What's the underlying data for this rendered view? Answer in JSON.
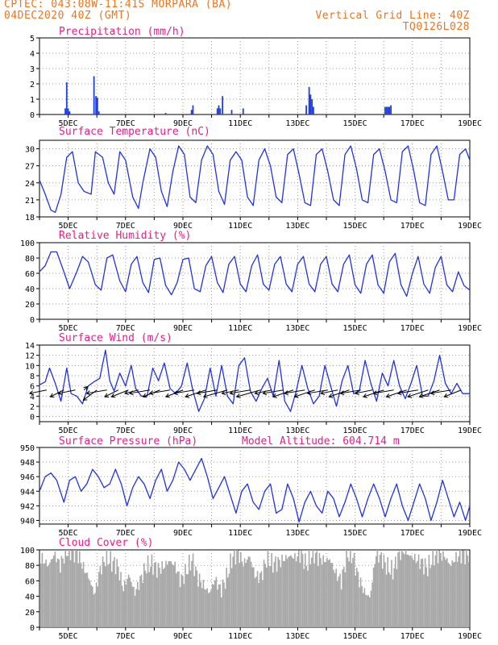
{
  "header": {
    "left_line1": "CPTEC:  043:08W-11:41S  MORPARA (BA)",
    "left_line2": "04DEC2020 40Z (GMT)",
    "right_line1": "Vertical Grid Line: 40Z",
    "right_line2": "TQ0126L028"
  },
  "x_axis": {
    "day_start": 4,
    "day_end": 19,
    "tick_labels": [
      "5DEC",
      "7DEC",
      "9DEC",
      "11DEC",
      "13DEC",
      "15DEC",
      "17DEC",
      "19DEC"
    ],
    "tick_days": [
      5,
      7,
      9,
      11,
      13,
      15,
      17,
      19
    ]
  },
  "chart_data": [
    {
      "type": "bar",
      "title": "Precipitation (mm/h)",
      "ylim": [
        0,
        5
      ],
      "yticks": [
        0,
        1,
        2,
        3,
        4,
        5
      ],
      "color": "#1f3fe0",
      "x": [
        4.9,
        4.95,
        5.0,
        5.05,
        5.9,
        5.97,
        6.02,
        6.07,
        8.4,
        9.3,
        9.35,
        10.2,
        10.25,
        10.3,
        10.38,
        10.7,
        11.1,
        13.3,
        13.4,
        13.45,
        13.5,
        13.55,
        16.05,
        16.1,
        16.15,
        16.2,
        16.25
      ],
      "values": [
        0.4,
        2.1,
        0.4,
        0.2,
        2.5,
        1.2,
        1.1,
        0.2,
        0.1,
        0.3,
        0.6,
        0.4,
        0.6,
        0.4,
        1.2,
        0.3,
        0.4,
        0.6,
        1.8,
        1.3,
        1.0,
        0.5,
        0.5,
        0.5,
        0.5,
        0.5,
        0.6
      ]
    },
    {
      "type": "line",
      "title": "Surface Temperature (nC)",
      "ylim": [
        18,
        31.5
      ],
      "yticks": [
        18,
        21,
        24,
        27,
        30
      ],
      "color": "#2233dd",
      "x": [
        4.0,
        4.2,
        4.4,
        4.55,
        4.75,
        4.95,
        5.15,
        5.35,
        5.55,
        5.8,
        5.95,
        6.2,
        6.4,
        6.6,
        6.8,
        7.0,
        7.25,
        7.45,
        7.6,
        7.85,
        8.05,
        8.25,
        8.45,
        8.65,
        8.85,
        9.05,
        9.25,
        9.45,
        9.65,
        9.85,
        10.05,
        10.25,
        10.45,
        10.65,
        10.85,
        11.05,
        11.25,
        11.45,
        11.65,
        11.85,
        12.05,
        12.25,
        12.45,
        12.65,
        12.85,
        13.05,
        13.25,
        13.45,
        13.65,
        13.85,
        14.05,
        14.25,
        14.45,
        14.65,
        14.85,
        15.05,
        15.25,
        15.45,
        15.65,
        15.85,
        16.05,
        16.25,
        16.45,
        16.65,
        16.85,
        17.05,
        17.25,
        17.45,
        17.65,
        17.85,
        18.05,
        18.25,
        18.45,
        18.65,
        18.85,
        19.0
      ],
      "values": [
        24.5,
        22.0,
        19.2,
        18.8,
        22.0,
        28.5,
        29.5,
        24.0,
        22.5,
        22.0,
        29.5,
        28.5,
        24.0,
        22.0,
        29.5,
        28.0,
        21.5,
        19.5,
        24.0,
        30.0,
        28.5,
        22.5,
        19.8,
        26.0,
        30.5,
        29.0,
        21.5,
        20.5,
        28.0,
        30.5,
        29.0,
        22.5,
        20.2,
        28.0,
        29.5,
        28.0,
        21.5,
        20.0,
        28.0,
        30.0,
        27.0,
        21.5,
        20.5,
        29.0,
        30.0,
        25.5,
        20.5,
        20.0,
        29.0,
        30.0,
        26.0,
        21.0,
        20.0,
        29.0,
        30.5,
        26.5,
        21.0,
        20.5,
        29.0,
        30.0,
        26.0,
        21.0,
        20.5,
        29.5,
        30.5,
        26.0,
        20.5,
        20.0,
        29.0,
        30.5,
        26.0,
        21.0,
        21.0,
        29.0,
        30.0,
        28.0
      ]
    },
    {
      "type": "line",
      "title": "Relative Humidity (%)",
      "ylim": [
        0,
        100
      ],
      "yticks": [
        0,
        20,
        40,
        60,
        80,
        100
      ],
      "color": "#2233dd",
      "x": [
        4.0,
        4.2,
        4.4,
        4.6,
        4.85,
        5.05,
        5.3,
        5.5,
        5.7,
        5.95,
        6.15,
        6.35,
        6.55,
        6.8,
        7.0,
        7.2,
        7.4,
        7.6,
        7.8,
        8.0,
        8.2,
        8.4,
        8.6,
        8.8,
        9.0,
        9.2,
        9.4,
        9.6,
        9.8,
        10.0,
        10.2,
        10.4,
        10.6,
        10.8,
        11.0,
        11.2,
        11.4,
        11.6,
        11.8,
        12.0,
        12.2,
        12.4,
        12.6,
        12.8,
        13.0,
        13.2,
        13.4,
        13.6,
        13.8,
        14.0,
        14.2,
        14.4,
        14.6,
        14.8,
        15.0,
        15.2,
        15.4,
        15.6,
        15.8,
        16.0,
        16.2,
        16.4,
        16.6,
        16.8,
        17.0,
        17.2,
        17.4,
        17.6,
        17.8,
        18.0,
        18.2,
        18.4,
        18.6,
        18.8,
        19.0
      ],
      "values": [
        62,
        70,
        88,
        88,
        62,
        40,
        62,
        82,
        75,
        45,
        38,
        80,
        84,
        50,
        36,
        72,
        82,
        48,
        35,
        78,
        80,
        44,
        32,
        48,
        78,
        80,
        40,
        36,
        70,
        82,
        48,
        35,
        72,
        82,
        46,
        36,
        70,
        84,
        46,
        38,
        72,
        82,
        46,
        36,
        72,
        82,
        46,
        36,
        72,
        82,
        46,
        36,
        72,
        84,
        45,
        34,
        72,
        84,
        45,
        34,
        75,
        86,
        45,
        30,
        60,
        82,
        46,
        34,
        68,
        82,
        45,
        36,
        62,
        44,
        38
      ]
    },
    {
      "type": "line",
      "title": "Surface Wind (m/s)",
      "ylim": [
        -1,
        14
      ],
      "yticks": [
        0,
        2,
        4,
        6,
        8,
        10,
        12,
        14
      ],
      "color": "#2233dd",
      "x": [
        4.0,
        4.2,
        4.35,
        4.55,
        4.75,
        4.95,
        5.1,
        5.3,
        5.5,
        5.7,
        5.9,
        6.1,
        6.3,
        6.45,
        6.6,
        6.8,
        7.0,
        7.2,
        7.35,
        7.55,
        7.75,
        7.95,
        8.15,
        8.35,
        8.55,
        8.75,
        8.95,
        9.15,
        9.35,
        9.55,
        9.75,
        9.95,
        10.15,
        10.35,
        10.55,
        10.75,
        10.95,
        11.15,
        11.35,
        11.55,
        11.75,
        11.95,
        12.15,
        12.35,
        12.55,
        12.75,
        12.95,
        13.15,
        13.35,
        13.55,
        13.75,
        13.95,
        14.15,
        14.35,
        14.55,
        14.75,
        14.95,
        15.15,
        15.35,
        15.55,
        15.75,
        15.95,
        16.15,
        16.35,
        16.55,
        16.75,
        16.95,
        17.15,
        17.35,
        17.55,
        17.75,
        17.95,
        18.15,
        18.35,
        18.55,
        18.75,
        19.0
      ],
      "values": [
        6.2,
        6.8,
        9.5,
        6.5,
        3.0,
        9.5,
        4.5,
        4.0,
        2.5,
        6.0,
        6.8,
        7.5,
        13.0,
        7.0,
        5.0,
        8.5,
        6.0,
        10.0,
        5.5,
        4.0,
        4.0,
        9.5,
        7.0,
        10.5,
        5.5,
        4.5,
        6.0,
        10.5,
        5.0,
        1.0,
        3.5,
        9.5,
        4.0,
        10.0,
        4.0,
        2.5,
        10.0,
        11.5,
        5.0,
        3.0,
        5.5,
        7.5,
        4.0,
        11.0,
        3.0,
        1.0,
        5.0,
        10.0,
        5.5,
        2.5,
        4.0,
        10.0,
        6.0,
        2.0,
        7.0,
        10.0,
        4.5,
        5.0,
        11.0,
        6.5,
        3.0,
        8.5,
        6.0,
        11.0,
        6.0,
        3.5,
        6.5,
        10.0,
        4.0,
        4.0,
        7.0,
        12.0,
        6.5,
        4.5,
        6.5,
        4.5,
        4.5
      ]
    },
    {
      "type": "line",
      "title": "Surface Pressure (hPa)",
      "ylim": [
        939.5,
        950
      ],
      "yticks": [
        940,
        942,
        944,
        946,
        948,
        950
      ],
      "color": "#2233dd",
      "x": [
        4.0,
        4.2,
        4.4,
        4.6,
        4.85,
        5.05,
        5.25,
        5.45,
        5.65,
        5.85,
        6.05,
        6.25,
        6.45,
        6.65,
        6.85,
        7.05,
        7.25,
        7.45,
        7.65,
        7.85,
        8.05,
        8.25,
        8.45,
        8.65,
        8.85,
        9.05,
        9.25,
        9.45,
        9.65,
        9.85,
        10.05,
        10.25,
        10.45,
        10.65,
        10.85,
        11.05,
        11.25,
        11.45,
        11.65,
        11.85,
        12.05,
        12.25,
        12.45,
        12.65,
        12.85,
        13.05,
        13.25,
        13.45,
        13.65,
        13.85,
        14.05,
        14.25,
        14.45,
        14.65,
        14.85,
        15.05,
        15.25,
        15.45,
        15.65,
        15.85,
        16.05,
        16.25,
        16.45,
        16.65,
        16.85,
        17.05,
        17.25,
        17.45,
        17.65,
        17.85,
        18.05,
        18.25,
        18.45,
        18.65,
        18.85,
        19.0
      ],
      "values": [
        944.0,
        946.0,
        946.5,
        945.5,
        942.5,
        945.5,
        946.0,
        944.0,
        945.0,
        947.0,
        946.0,
        944.5,
        945.0,
        947.0,
        945.0,
        942.0,
        944.5,
        946.0,
        945.0,
        943.0,
        945.5,
        947.0,
        944.0,
        945.5,
        948.0,
        947.0,
        945.5,
        947.0,
        948.5,
        946.0,
        943.0,
        944.5,
        946.0,
        943.5,
        941.0,
        944.0,
        945.0,
        942.5,
        941.5,
        944.0,
        945.0,
        941.0,
        941.5,
        945.0,
        943.0,
        939.8,
        942.5,
        944.0,
        942.0,
        941.0,
        944.0,
        943.0,
        940.5,
        942.5,
        945.0,
        943.0,
        940.5,
        943.0,
        945.0,
        943.0,
        940.5,
        943.0,
        945.0,
        942.0,
        940.0,
        942.5,
        945.0,
        943.0,
        940.0,
        942.5,
        945.5,
        943.0,
        940.5,
        942.5,
        940.0,
        942.0
      ]
    },
    {
      "type": "area",
      "title": "Cloud Cover (%)",
      "ylim": [
        0,
        100
      ],
      "yticks": [
        0,
        20,
        40,
        60,
        80,
        100
      ],
      "color": "#a8a8a8",
      "x": [
        4.0,
        4.3,
        4.5,
        4.7,
        4.9,
        5.1,
        5.3,
        5.5,
        5.7,
        5.9,
        6.1,
        6.3,
        6.5,
        6.7,
        6.9,
        7.1,
        7.3,
        7.5,
        7.7,
        7.9,
        8.1,
        8.3,
        8.5,
        8.7,
        8.9,
        9.1,
        9.3,
        9.5,
        9.7,
        9.9,
        10.1,
        10.3,
        10.5,
        10.7,
        10.9,
        11.1,
        11.3,
        11.5,
        11.7,
        11.9,
        12.1,
        12.3,
        12.5,
        12.7,
        12.9,
        13.1,
        13.3,
        13.5,
        13.7,
        13.9,
        14.1,
        14.3,
        14.5,
        14.7,
        14.9,
        15.1,
        15.3,
        15.5,
        15.7,
        15.9,
        16.1,
        16.3,
        16.5,
        16.7,
        16.9,
        17.1,
        17.3,
        17.5,
        17.7,
        17.9,
        18.1,
        18.3,
        18.5,
        18.7,
        19.0
      ],
      "values": [
        90,
        80,
        95,
        80,
        98,
        98,
        96,
        78,
        64,
        42,
        76,
        90,
        84,
        80,
        50,
        68,
        44,
        62,
        78,
        82,
        75,
        78,
        86,
        80,
        60,
        72,
        88,
        64,
        54,
        44,
        62,
        48,
        64,
        90,
        96,
        82,
        92,
        66,
        66,
        88,
        82,
        84,
        88,
        92,
        90,
        94,
        80,
        96,
        90,
        86,
        88,
        70,
        60,
        94,
        92,
        64,
        46,
        38,
        94,
        90,
        78,
        72,
        94,
        98,
        92,
        88,
        84,
        76,
        90,
        94,
        92,
        80,
        90,
        94,
        94
      ]
    }
  ],
  "model_altitude_label": "Model Altitude: 604.714 m",
  "wind_vectors": {
    "x": [
      4.25,
      4.85,
      5.25,
      5.55,
      6.0,
      6.35,
      6.75,
      7.1,
      7.45,
      7.85,
      8.2,
      8.55,
      9.0,
      9.4,
      9.8,
      10.2,
      10.55,
      10.95,
      11.35,
      11.7,
      12.1,
      12.5,
      12.85,
      13.25,
      13.6,
      14.05,
      14.4,
      14.8,
      15.2,
      15.6,
      16.0,
      16.35,
      16.8,
      17.2,
      17.55,
      17.95,
      18.35,
      18.7
    ],
    "u": [
      -5,
      -4,
      -5,
      1,
      -4,
      -6,
      -4,
      -5,
      -4,
      -6,
      -5,
      -6,
      -5,
      -6,
      -6,
      -6,
      -7,
      -5,
      -6,
      -7,
      -5,
      -6,
      -6,
      -6,
      -6,
      -6,
      -5,
      -6,
      -6,
      -5,
      -6,
      -6,
      -6,
      -6,
      -6,
      -6,
      -6,
      -5
    ],
    "v": [
      -1,
      -2,
      -1,
      1,
      -3,
      -1,
      -2,
      -2,
      -1,
      -1,
      -2,
      -1,
      -2,
      -1,
      -2,
      -1,
      -2,
      -1,
      -1,
      -2,
      -1,
      -1,
      -2,
      -1,
      -2,
      -1,
      -1,
      -2,
      -1,
      -1,
      -2,
      -1,
      -2,
      -1,
      -2,
      -2,
      -1,
      -2
    ]
  }
}
